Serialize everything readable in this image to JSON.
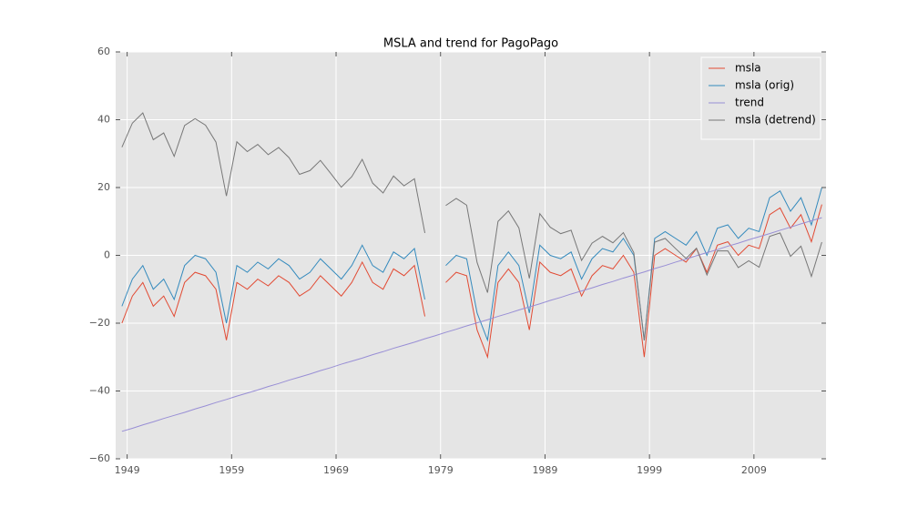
{
  "chart_data": {
    "type": "line",
    "title": "MSLA and trend for PagoPago",
    "x": [
      1948.5,
      1949.5,
      1950.5,
      1951.5,
      1952.5,
      1953.5,
      1954.5,
      1955.5,
      1956.5,
      1957.5,
      1958.5,
      1959.5,
      1960.5,
      1961.5,
      1962.5,
      1963.5,
      1964.5,
      1965.5,
      1966.5,
      1967.5,
      1968.5,
      1969.5,
      1970.5,
      1971.5,
      1972.5,
      1973.5,
      1974.5,
      1975.5,
      1976.5,
      1977.5,
      1978.5,
      1979.5,
      1980.5,
      1981.5,
      1982.5,
      1983.5,
      1984.5,
      1985.5,
      1986.5,
      1987.5,
      1988.5,
      1989.5,
      1990.5,
      1991.5,
      1992.5,
      1993.5,
      1994.5,
      1995.5,
      1996.5,
      1997.5,
      1998.5,
      1999.5,
      2000.5,
      2001.5,
      2002.5,
      2003.5,
      2004.5,
      2005.5,
      2006.5,
      2007.5,
      2008.5,
      2009.5,
      2010.5,
      2011.5,
      2012.5,
      2013.5,
      2014.5,
      2015.5
    ],
    "series": [
      {
        "name": "msla",
        "color": "#e24a33",
        "values": [
          -20,
          -12,
          -8,
          -15,
          -12,
          -18,
          -8,
          -5,
          -6,
          -10,
          -25,
          -8,
          -10,
          -7,
          -9,
          -6,
          -8,
          -12,
          -10,
          -6,
          -9,
          -12,
          -8,
          -2,
          -8,
          -10,
          -4,
          -6,
          -3,
          -18,
          null,
          -8,
          -5,
          -6,
          -22,
          -30,
          -8,
          -4,
          -8,
          -22,
          -2,
          -5,
          -6,
          -4,
          -12,
          -6,
          -3,
          -4,
          0,
          -5,
          -30,
          0,
          2,
          0,
          -2,
          2,
          -5,
          3,
          4,
          0,
          3,
          2,
          12,
          14,
          8,
          12,
          4,
          15
        ]
      },
      {
        "name": "msla (orig)",
        "color": "#348abd",
        "values": [
          -15,
          -7,
          -3,
          -10,
          -7,
          -13,
          -3,
          0,
          -1,
          -5,
          -20,
          -3,
          -5,
          -2,
          -4,
          -1,
          -3,
          -7,
          -5,
          -1,
          -4,
          -7,
          -3,
          3,
          -3,
          -5,
          1,
          -1,
          2,
          -13,
          null,
          -3,
          0,
          -1,
          -17,
          -25,
          -3,
          1,
          -3,
          -17,
          3,
          0,
          -1,
          1,
          -7,
          -1,
          2,
          1,
          5,
          0,
          -25,
          5,
          7,
          5,
          3,
          7,
          0,
          8,
          9,
          5,
          8,
          7,
          17,
          19,
          13,
          17,
          9,
          20
        ]
      },
      {
        "name": "trend",
        "color": "#988ed5",
        "values": [
          -51.9,
          -51.0,
          -50.0,
          -49.1,
          -48.1,
          -47.2,
          -46.3,
          -45.3,
          -44.4,
          -43.4,
          -42.5,
          -41.5,
          -40.6,
          -39.7,
          -38.7,
          -37.8,
          -36.8,
          -35.9,
          -35.0,
          -34.0,
          -33.1,
          -32.1,
          -31.2,
          -30.3,
          -29.3,
          -28.4,
          -27.4,
          -26.5,
          -25.6,
          -24.6,
          -23.7,
          -22.7,
          -21.8,
          -20.8,
          -19.9,
          -19.0,
          -18.0,
          -17.1,
          -16.1,
          -15.2,
          -14.3,
          -13.3,
          -12.4,
          -11.4,
          -10.5,
          -9.6,
          -8.6,
          -7.7,
          -6.7,
          -5.8,
          -4.9,
          -3.9,
          -3.0,
          -2.0,
          -1.1,
          -0.1,
          0.8,
          1.7,
          2.7,
          3.6,
          4.6,
          5.5,
          6.4,
          7.4,
          8.3,
          9.3,
          10.2,
          11.1
        ]
      },
      {
        "name": "msla (detrend)",
        "color": "#777777",
        "values": [
          31.9,
          39.0,
          42.0,
          34.1,
          36.1,
          29.2,
          38.3,
          40.3,
          38.4,
          33.4,
          17.5,
          33.5,
          30.6,
          32.7,
          29.7,
          31.8,
          28.8,
          23.9,
          25.0,
          28.0,
          24.1,
          20.1,
          23.2,
          28.3,
          21.3,
          18.4,
          23.4,
          20.5,
          22.6,
          6.6,
          null,
          14.7,
          16.8,
          14.8,
          -2.1,
          -11.0,
          10.0,
          13.1,
          8.1,
          -6.8,
          12.3,
          8.3,
          6.4,
          7.4,
          -1.5,
          3.6,
          5.6,
          3.7,
          6.7,
          0.8,
          -25.1,
          3.9,
          5.0,
          2.0,
          -0.9,
          2.1,
          -5.8,
          1.3,
          1.3,
          -3.6,
          -1.6,
          -3.5,
          5.6,
          6.6,
          -0.3,
          2.7,
          -6.2,
          3.9
        ]
      }
    ],
    "xlim": [
      1947.9,
      2015.9
    ],
    "xticks": [
      1949,
      1959,
      1969,
      1979,
      1989,
      1999,
      2009
    ],
    "ylim": [
      -60,
      60
    ],
    "yticks": [
      {
        "value": -60,
        "label": "−60"
      },
      {
        "value": -40,
        "label": "−40"
      },
      {
        "value": -20,
        "label": "−20"
      },
      0,
      20,
      40,
      60
    ],
    "grid": true,
    "legend": "upper right"
  }
}
